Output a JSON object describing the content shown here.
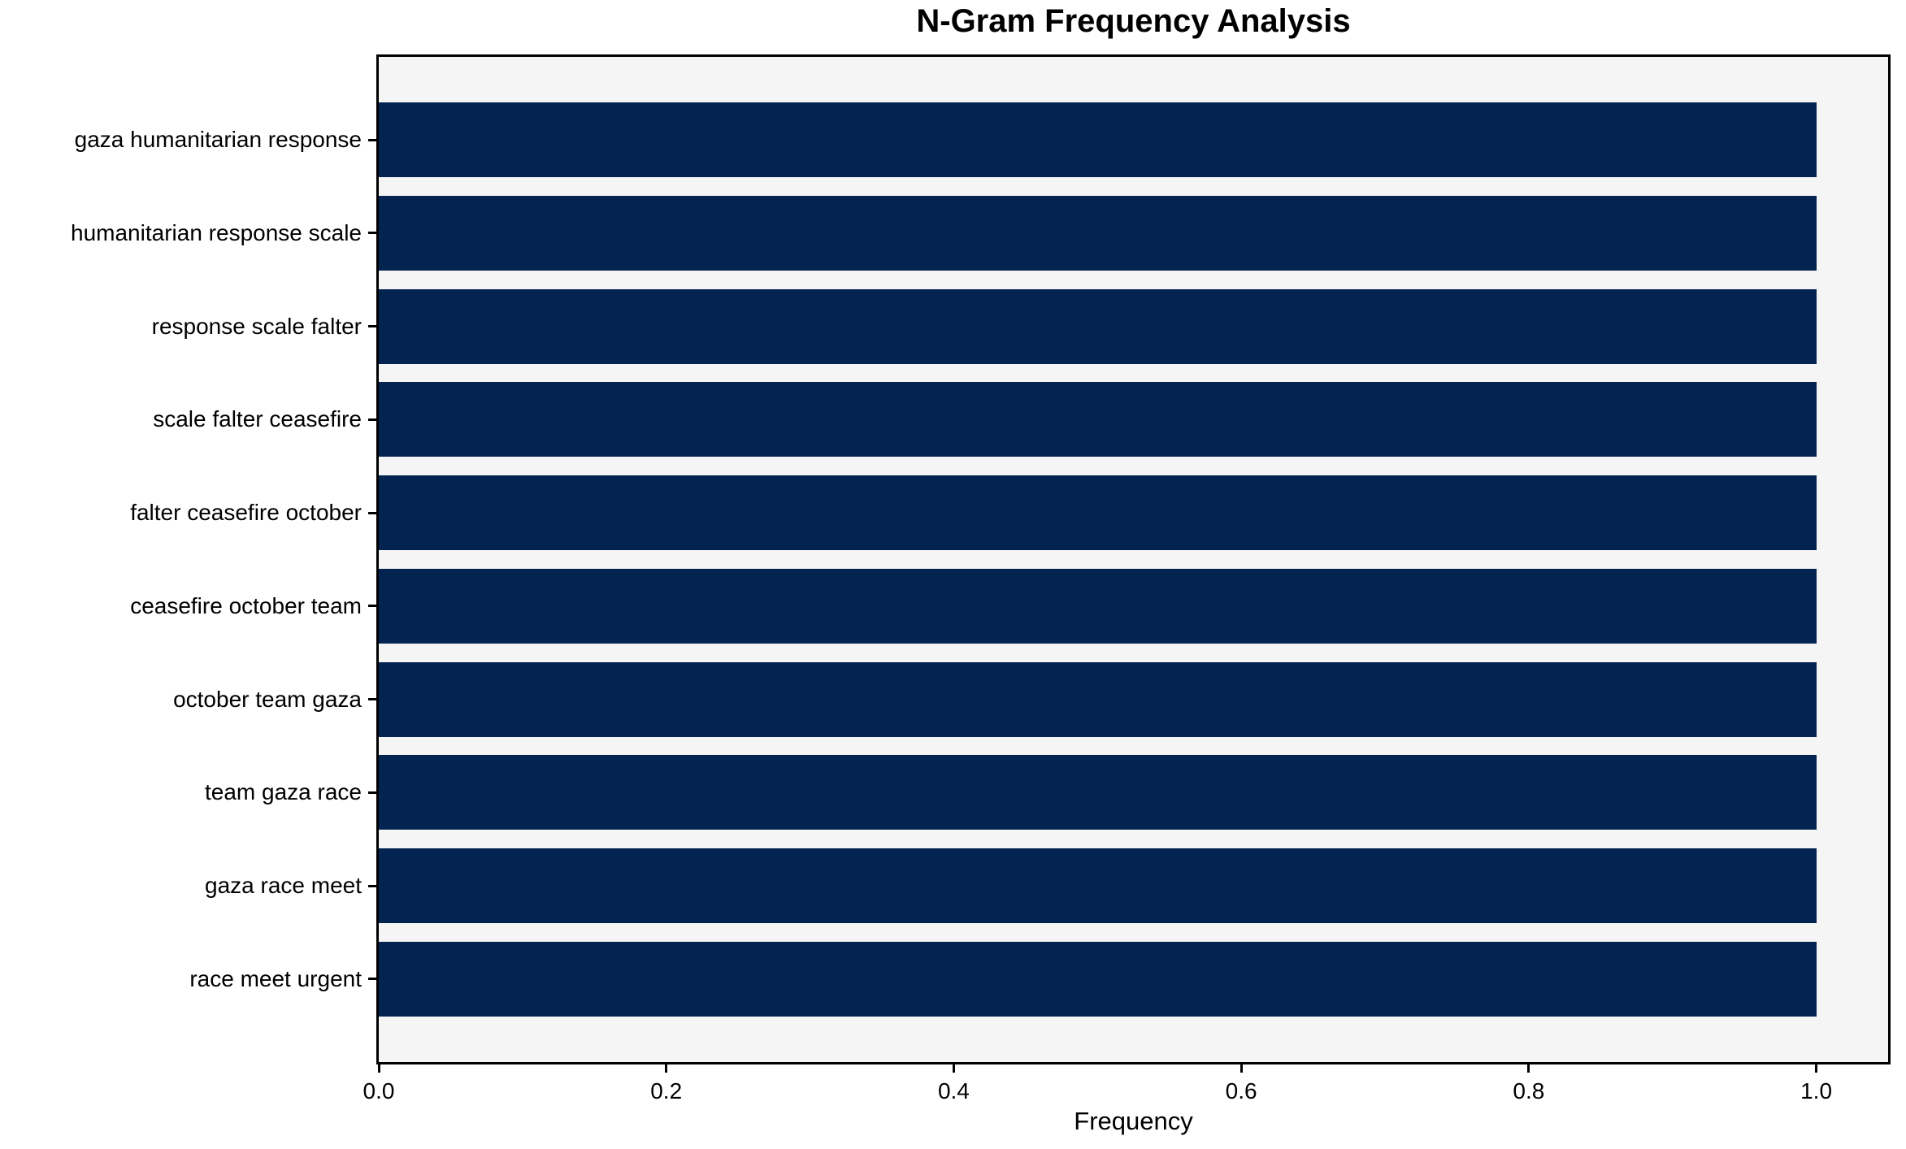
{
  "chart_data": {
    "type": "bar",
    "orientation": "horizontal",
    "title": "N-Gram Frequency Analysis",
    "xlabel": "Frequency",
    "ylabel": "",
    "categories": [
      "gaza humanitarian response",
      "humanitarian response scale",
      "response scale falter",
      "scale falter ceasefire",
      "falter ceasefire october",
      "ceasefire october team",
      "october team gaza",
      "team gaza race",
      "gaza race meet",
      "race meet urgent"
    ],
    "values": [
      1.0,
      1.0,
      1.0,
      1.0,
      1.0,
      1.0,
      1.0,
      1.0,
      1.0,
      1.0
    ],
    "xticks": [
      "0.0",
      "0.2",
      "0.4",
      "0.6",
      "0.8",
      "1.0"
    ],
    "xtick_values": [
      0.0,
      0.2,
      0.4,
      0.6,
      0.8,
      1.0
    ],
    "xlim": [
      0,
      1.05
    ],
    "grid": false,
    "legend": null,
    "bar_color": "#032450",
    "plot_background": "#f5f5f5",
    "axis_color": "#000000",
    "text_color": "#000000"
  }
}
